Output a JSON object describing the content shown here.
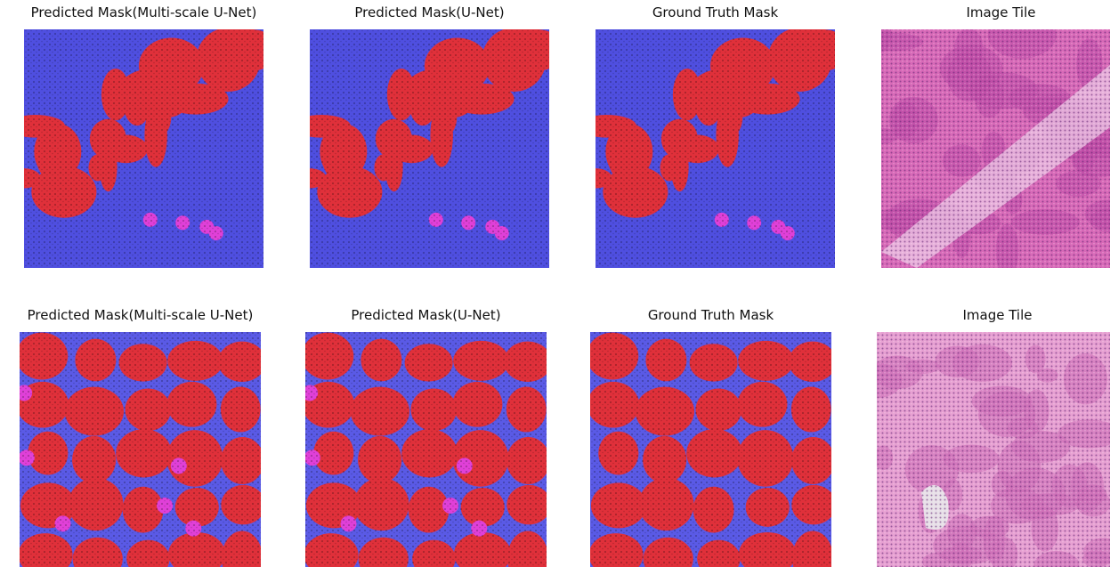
{
  "rows": [
    {
      "panels": [
        {
          "title": "Predicted Mask(Multi-scale U-Net)"
        },
        {
          "title": "Predicted Mask(U-Net)"
        },
        {
          "title": "Ground Truth Mask"
        },
        {
          "title": "Image Tile"
        }
      ]
    },
    {
      "panels": [
        {
          "title": "Predicted Mask(Multi-scale U-Net)"
        },
        {
          "title": "Predicted Mask(U-Net)"
        },
        {
          "title": "Ground Truth Mask"
        },
        {
          "title": "Image Tile"
        }
      ]
    }
  ]
}
